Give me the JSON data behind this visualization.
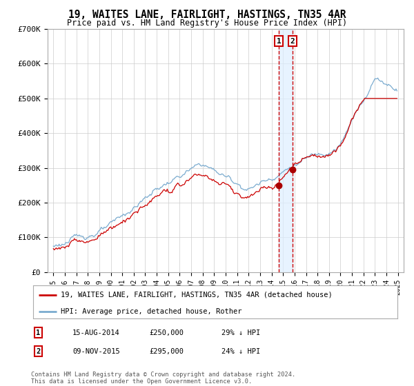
{
  "title": "19, WAITES LANE, FAIRLIGHT, HASTINGS, TN35 4AR",
  "subtitle": "Price paid vs. HM Land Registry's House Price Index (HPI)",
  "legend1": "19, WAITES LANE, FAIRLIGHT, HASTINGS, TN35 4AR (detached house)",
  "legend2": "HPI: Average price, detached house, Rother",
  "footer": "Contains HM Land Registry data © Crown copyright and database right 2024.\nThis data is licensed under the Open Government Licence v3.0.",
  "sale1_date": "15-AUG-2014",
  "sale1_price": 250000,
  "sale1_pct": "29% ↓ HPI",
  "sale2_date": "09-NOV-2015",
  "sale2_price": 295000,
  "sale2_pct": "24% ↓ HPI",
  "red_color": "#cc0000",
  "blue_color": "#7aabcf",
  "shade_color": "#ddeeff",
  "marker_color": "#aa0000",
  "vline_color": "#cc0000",
  "grid_color": "#cccccc",
  "box_color": "#cc0000",
  "ylim": [
    0,
    700000
  ],
  "yticks": [
    0,
    100000,
    200000,
    300000,
    400000,
    500000,
    600000,
    700000
  ],
  "ytick_labels": [
    "£0",
    "£100K",
    "£200K",
    "£300K",
    "£400K",
    "£500K",
    "£600K",
    "£700K"
  ],
  "sale1_x": 2014.625,
  "sale2_x": 2015.833
}
